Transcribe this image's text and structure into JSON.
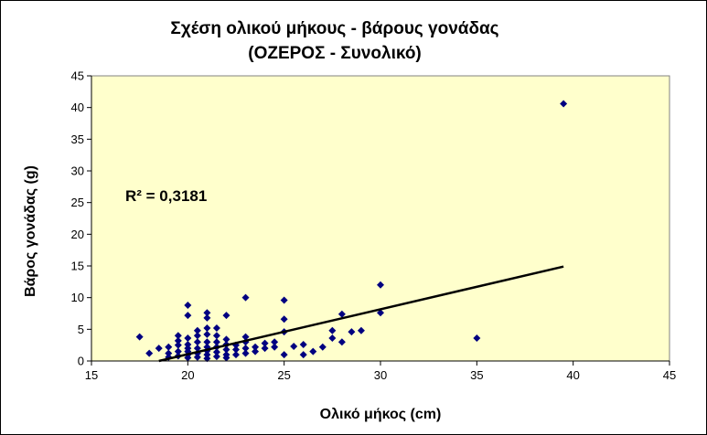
{
  "chart_data": {
    "type": "scatter",
    "title": "Σχέση ολικού μήκους - βάρους γονάδας",
    "subtitle": "(ΟΖΕΡΟΣ - Συνολικό)",
    "xlabel": "Ολικό μήκος (cm)",
    "ylabel": "Βάρος γονάδας (g)",
    "xlim": [
      15,
      45
    ],
    "ylim": [
      0,
      45
    ],
    "xticks": [
      15,
      20,
      25,
      30,
      35,
      40,
      45
    ],
    "yticks": [
      0,
      5,
      10,
      15,
      20,
      25,
      30,
      35,
      40,
      45
    ],
    "grid": false,
    "legend": "none",
    "annotation": "R² = 0,3181",
    "colors": {
      "plot_bg": "#FFFFCC",
      "marker": "#000080",
      "trend": "#000000"
    },
    "series": [
      {
        "marker": "diamond",
        "points": [
          [
            17.5,
            3.8
          ],
          [
            18.0,
            1.2
          ],
          [
            18.5,
            2.0
          ],
          [
            19.0,
            0.6
          ],
          [
            19.0,
            1.2
          ],
          [
            19.0,
            2.2
          ],
          [
            19.5,
            0.8
          ],
          [
            19.5,
            1.5
          ],
          [
            19.5,
            2.5
          ],
          [
            19.5,
            3.2
          ],
          [
            19.5,
            4.0
          ],
          [
            20.0,
            0.5
          ],
          [
            20.0,
            1.0
          ],
          [
            20.0,
            1.5
          ],
          [
            20.0,
            2.0
          ],
          [
            20.0,
            2.6
          ],
          [
            20.0,
            3.6
          ],
          [
            20.0,
            7.2
          ],
          [
            20.0,
            8.8
          ],
          [
            20.5,
            0.6
          ],
          [
            20.5,
            1.2
          ],
          [
            20.5,
            2.0
          ],
          [
            20.5,
            3.0
          ],
          [
            20.5,
            4.0
          ],
          [
            20.5,
            4.8
          ],
          [
            21.0,
            0.4
          ],
          [
            21.0,
            1.0
          ],
          [
            21.0,
            1.6
          ],
          [
            21.0,
            2.2
          ],
          [
            21.0,
            3.0
          ],
          [
            21.0,
            4.2
          ],
          [
            21.0,
            5.2
          ],
          [
            21.0,
            6.8
          ],
          [
            21.0,
            7.6
          ],
          [
            21.5,
            0.7
          ],
          [
            21.5,
            1.4
          ],
          [
            21.5,
            2.2
          ],
          [
            21.5,
            3.0
          ],
          [
            21.5,
            4.0
          ],
          [
            21.5,
            5.2
          ],
          [
            22.0,
            0.5
          ],
          [
            22.0,
            1.0
          ],
          [
            22.0,
            1.8
          ],
          [
            22.0,
            2.6
          ],
          [
            22.0,
            3.4
          ],
          [
            22.0,
            7.2
          ],
          [
            22.5,
            1.0
          ],
          [
            22.5,
            1.8
          ],
          [
            22.5,
            2.5
          ],
          [
            23.0,
            1.2
          ],
          [
            23.0,
            2.0
          ],
          [
            23.0,
            3.0
          ],
          [
            23.0,
            3.8
          ],
          [
            23.0,
            10.0
          ],
          [
            23.5,
            1.5
          ],
          [
            23.5,
            2.2
          ],
          [
            24.0,
            2.0
          ],
          [
            24.0,
            2.8
          ],
          [
            24.5,
            2.2
          ],
          [
            24.5,
            3.0
          ],
          [
            25.0,
            1.0
          ],
          [
            25.0,
            4.6
          ],
          [
            25.0,
            6.6
          ],
          [
            25.0,
            9.6
          ],
          [
            25.5,
            2.3
          ],
          [
            26.0,
            1.0
          ],
          [
            26.0,
            2.6
          ],
          [
            26.5,
            1.5
          ],
          [
            27.0,
            2.2
          ],
          [
            27.5,
            3.6
          ],
          [
            27.5,
            4.8
          ],
          [
            28.0,
            3.0
          ],
          [
            28.0,
            7.4
          ],
          [
            28.5,
            4.6
          ],
          [
            29.0,
            4.8
          ],
          [
            30.0,
            7.6
          ],
          [
            30.0,
            12.0
          ],
          [
            35.0,
            3.6
          ],
          [
            39.5,
            40.6
          ]
        ]
      }
    ],
    "trendline": {
      "x": [
        18.5,
        39.5
      ],
      "y": [
        0.0,
        14.9
      ]
    }
  }
}
